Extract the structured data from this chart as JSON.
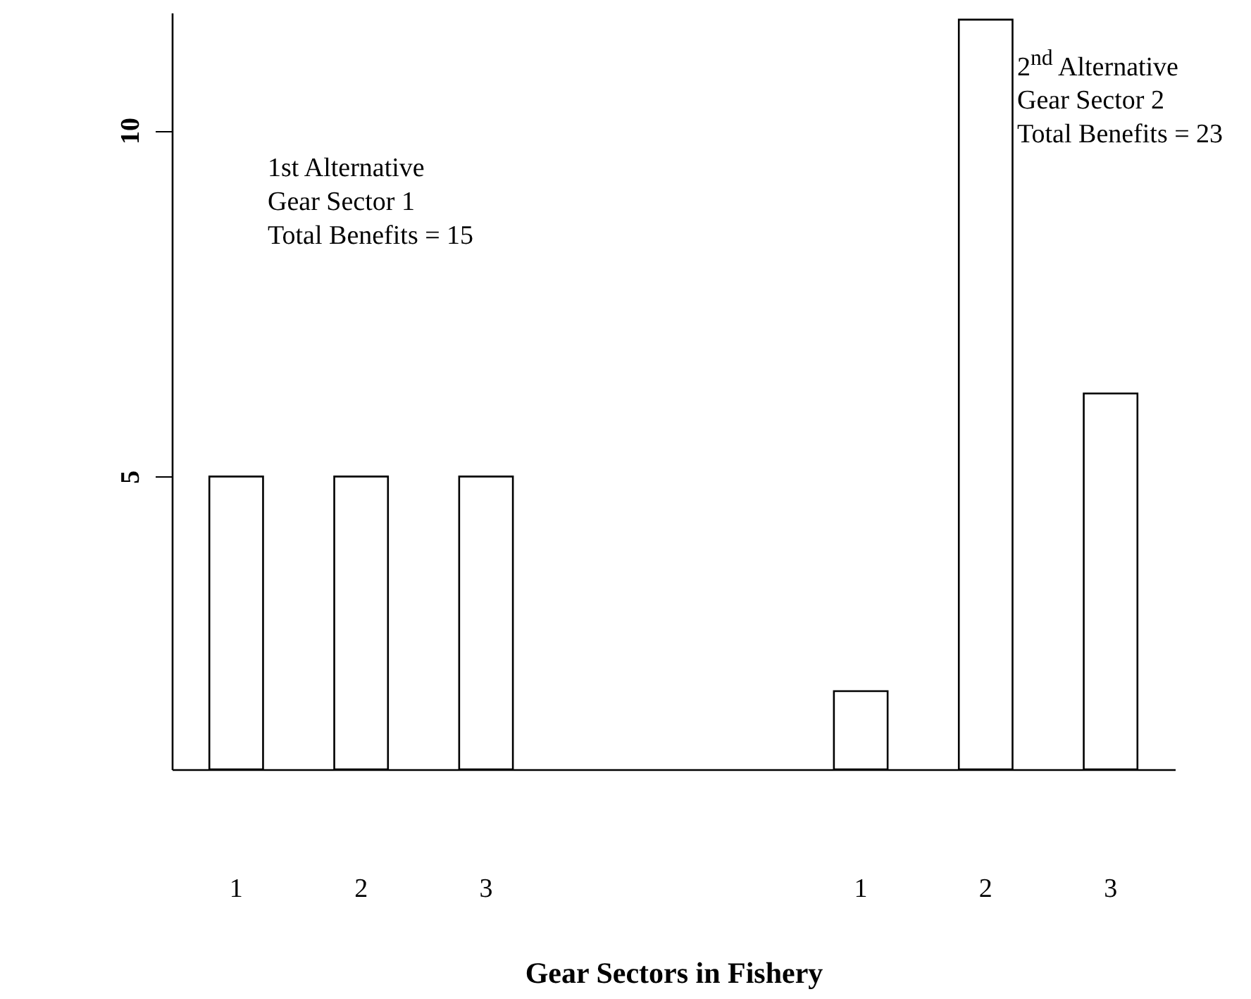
{
  "chart_data": {
    "type": "bar",
    "xlabel": "Gear Sectors in Fishery",
    "categories": [
      "1",
      "2",
      "3",
      null,
      null,
      "1",
      "2",
      "3"
    ],
    "values": [
      5,
      5,
      5,
      null,
      null,
      1.9,
      11.6,
      6.2
    ],
    "color": "#ffffff",
    "ylim": [
      0.77,
      11.7
    ],
    "yticks": [
      5,
      10
    ],
    "grid": false,
    "annotations": [
      "1st Alternative\nGear Sector 1\nTotal Benefits = 15",
      "2$^{nd}$ Alternative\nGear Sector 2\nTotal Benefits = 23"
    ]
  }
}
